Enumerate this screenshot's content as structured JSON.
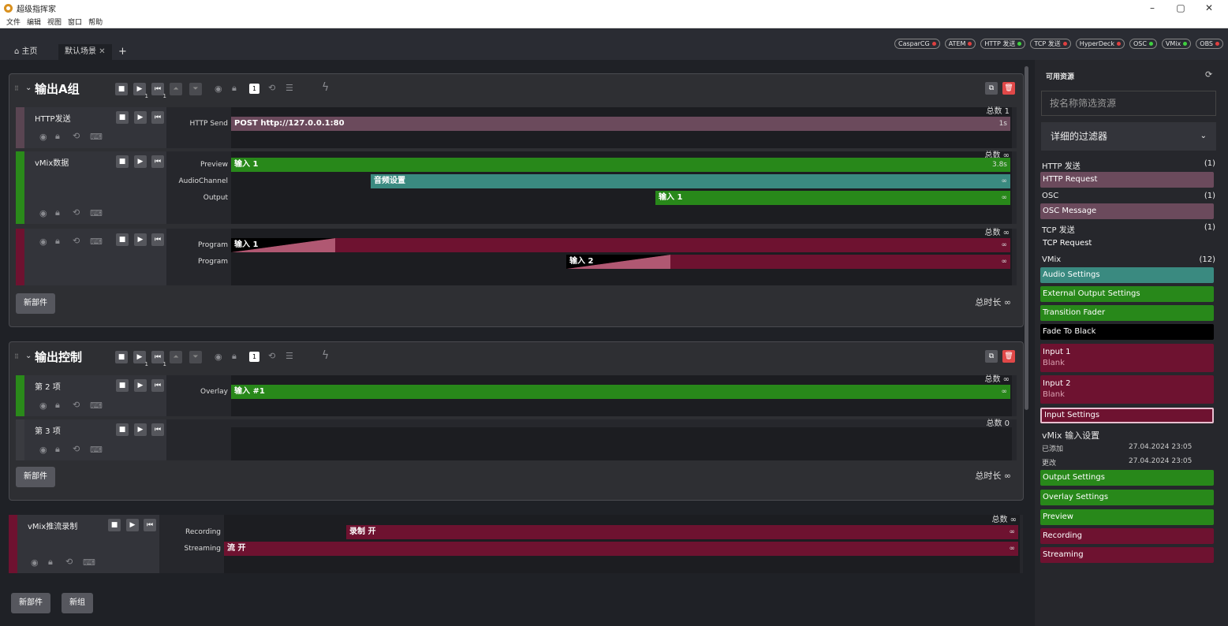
{
  "app": {
    "title": "超级指挥家",
    "menu": [
      "文件",
      "编辑",
      "视图",
      "窗口",
      "帮助"
    ]
  },
  "tabs": [
    {
      "label": "主页"
    },
    {
      "label": "默认场景"
    }
  ],
  "devices": [
    {
      "name": "CasparCG",
      "color": "#e04040"
    },
    {
      "name": "ATEM",
      "color": "#e04040"
    },
    {
      "name": "HTTP 发送",
      "color": "#40d040"
    },
    {
      "name": "TCP 发送",
      "color": "#e04040"
    },
    {
      "name": "HyperDeck",
      "color": "#e04040"
    },
    {
      "name": "OSC",
      "color": "#40d040"
    },
    {
      "name": "VMix",
      "color": "#40d040"
    },
    {
      "name": "OBS",
      "color": "#e04040"
    }
  ],
  "group1": {
    "title": "输出A组",
    "counter": "1",
    "total_duration": "总时长 ∞",
    "new_part": "新部件",
    "part1": {
      "name": "HTTP发送",
      "total": "总数 1",
      "layer": "HTTP Send",
      "clip": "POST http://127.0.0.1:80",
      "dur": "1s"
    },
    "part2": {
      "name": "vMix数据",
      "total": "总数 ∞",
      "layers": [
        "Preview",
        "AudioChannel",
        "Output"
      ],
      "clips": [
        "输入 1",
        "音频设置",
        "输入 1"
      ],
      "durs": [
        "3.8s",
        "∞",
        "∞"
      ]
    },
    "part3": {
      "name": "",
      "total": "总数 ∞",
      "layers": [
        "Program",
        "Program"
      ],
      "clips": [
        "输入 1",
        "输入 2"
      ],
      "durs": [
        "∞",
        "∞"
      ]
    }
  },
  "group2": {
    "title": "输出控制",
    "counter": "1",
    "total_duration": "总时长 ∞",
    "new_part": "新部件",
    "part1": {
      "name": "第 2 项",
      "total": "总数 ∞",
      "layer": "Overlay",
      "clip": "输入 #1",
      "dur": "∞"
    },
    "part2": {
      "name": "第 3 项",
      "total": "总数 0"
    }
  },
  "part_stream": {
    "name": "vMix推流录制",
    "total": "总数 ∞",
    "layers": [
      "Recording",
      "Streaming"
    ],
    "clips": [
      "录制 开",
      "流 开"
    ],
    "durs": [
      "∞",
      "∞"
    ]
  },
  "footer": {
    "new_part": "新部件",
    "new_group": "新组"
  },
  "sidebar": {
    "title": "可用资源",
    "filter_placeholder": "按名称筛选资源",
    "filter_detail": "详细的过滤器",
    "cats": [
      {
        "name": "HTTP 发送",
        "count": "(1)"
      },
      {
        "name": "OSC",
        "count": "(1)"
      },
      {
        "name": "TCP 发送",
        "count": "(1)"
      },
      {
        "name": "VMix",
        "count": "(12)"
      }
    ],
    "items": {
      "http": "HTTP Request",
      "osc": "OSC Message",
      "tcp": "TCP Request",
      "audio": "Audio Settings",
      "ext": "External Output Settings",
      "trans": "Transition Fader",
      "ftb": "Fade To Black",
      "in1": "Input 1",
      "in1sub": "Blank",
      "in2": "Input 2",
      "in2sub": "Blank",
      "inset": "Input Settings",
      "outset": "Output Settings",
      "ovset": "Overlay Settings",
      "preview": "Preview",
      "rec": "Recording",
      "stream": "Streaming"
    },
    "detail": {
      "title": "vMix 输入设置",
      "added_label": "已添加",
      "added": "27.04.2024 23:05",
      "mod_label": "更改",
      "mod": "27.04.2024 23:05"
    }
  }
}
